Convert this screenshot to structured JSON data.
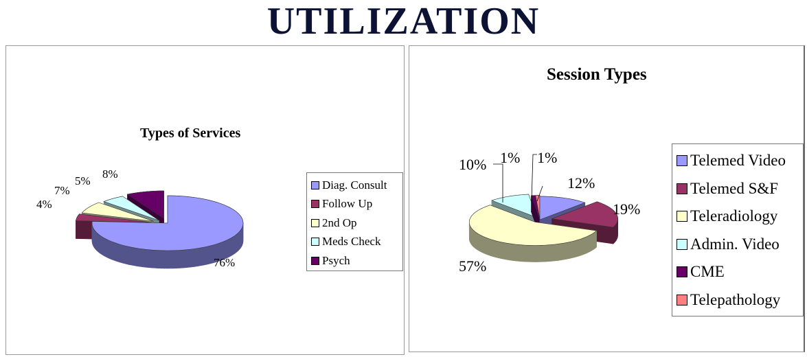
{
  "title": "UTILIZATION",
  "chart_data": [
    {
      "type": "pie",
      "title": "Types of Services",
      "legend_position": "right",
      "categories": [
        "Diag. Consult",
        "Follow Up",
        "2nd Op",
        "Meds Check",
        "Psych"
      ],
      "values": [
        76,
        4,
        7,
        5,
        8
      ],
      "labels": [
        "76%",
        "4%",
        "7%",
        "5%",
        "8%"
      ],
      "colors": [
        "#9999ff",
        "#993366",
        "#ffffcc",
        "#ccffff",
        "#660066"
      ]
    },
    {
      "type": "pie",
      "title": "Session Types",
      "legend_position": "right",
      "categories": [
        "Telemed Video",
        "Telemed S&F",
        "Teleradiology",
        "Admin. Video",
        "CME",
        "Telepathology"
      ],
      "values": [
        12,
        19,
        57,
        10,
        1,
        1
      ],
      "labels": [
        "12%",
        "19%",
        "57%",
        "10%",
        "1%",
        "1%"
      ],
      "colors": [
        "#9999ff",
        "#993366",
        "#ffffcc",
        "#ccffff",
        "#660066",
        "#ff8080"
      ]
    }
  ]
}
